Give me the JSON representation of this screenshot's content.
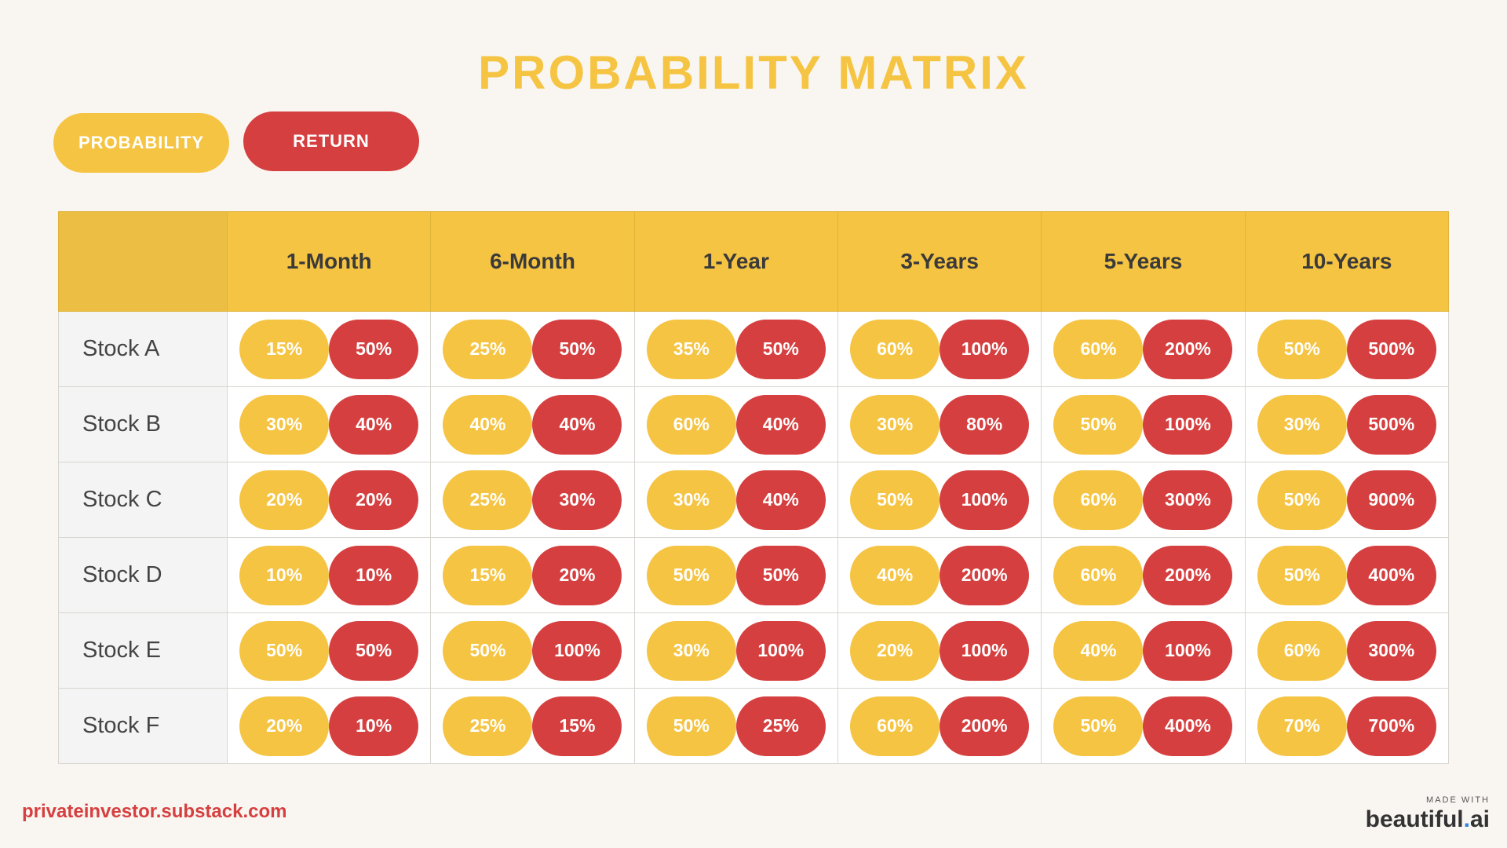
{
  "title": "PROBABILITY MATRIX",
  "legend": {
    "probability_label": "PROBABILITY",
    "return_label": "RETURN"
  },
  "colors": {
    "probability": "#f5c443",
    "return": "#d63f3f",
    "background": "#f9f6f1"
  },
  "table": {
    "columns": [
      "1-Month",
      "6-Month",
      "1-Year",
      "3-Years",
      "5-Years",
      "10-Years"
    ],
    "rows": [
      {
        "label": "Stock A",
        "cells": [
          [
            "15%",
            "50%"
          ],
          [
            "25%",
            "50%"
          ],
          [
            "35%",
            "50%"
          ],
          [
            "60%",
            "100%"
          ],
          [
            "60%",
            "200%"
          ],
          [
            "50%",
            "500%"
          ]
        ]
      },
      {
        "label": "Stock B",
        "cells": [
          [
            "30%",
            "40%"
          ],
          [
            "40%",
            "40%"
          ],
          [
            "60%",
            "40%"
          ],
          [
            "30%",
            "80%"
          ],
          [
            "50%",
            "100%"
          ],
          [
            "30%",
            "500%"
          ]
        ]
      },
      {
        "label": "Stock C",
        "cells": [
          [
            "20%",
            "20%"
          ],
          [
            "25%",
            "30%"
          ],
          [
            "30%",
            "40%"
          ],
          [
            "50%",
            "100%"
          ],
          [
            "60%",
            "300%"
          ],
          [
            "50%",
            "900%"
          ]
        ]
      },
      {
        "label": "Stock D",
        "cells": [
          [
            "10%",
            "10%"
          ],
          [
            "15%",
            "20%"
          ],
          [
            "50%",
            "50%"
          ],
          [
            "40%",
            "200%"
          ],
          [
            "60%",
            "200%"
          ],
          [
            "50%",
            "400%"
          ]
        ]
      },
      {
        "label": "Stock E",
        "cells": [
          [
            "50%",
            "50%"
          ],
          [
            "50%",
            "100%"
          ],
          [
            "30%",
            "100%"
          ],
          [
            "20%",
            "100%"
          ],
          [
            "40%",
            "100%"
          ],
          [
            "60%",
            "300%"
          ]
        ]
      },
      {
        "label": "Stock F",
        "cells": [
          [
            "20%",
            "10%"
          ],
          [
            "25%",
            "15%"
          ],
          [
            "50%",
            "25%"
          ],
          [
            "60%",
            "200%"
          ],
          [
            "50%",
            "400%"
          ],
          [
            "70%",
            "700%"
          ]
        ]
      }
    ]
  },
  "footer": {
    "site": "privateinvestor.substack.com",
    "made_with": "MADE WITH",
    "brand_main": "beautiful",
    "brand_dot": ".",
    "brand_suffix": "ai"
  }
}
